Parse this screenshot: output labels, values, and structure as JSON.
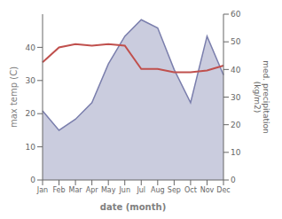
{
  "chart_data": {
    "type": "line",
    "categories": [
      "Jan",
      "Feb",
      "Mar",
      "Apr",
      "May",
      "Jun",
      "Jul",
      "Aug",
      "Sep",
      "Oct",
      "Nov",
      "Dec"
    ],
    "xlabel": "date (month)",
    "ylabel": "max temp (C)",
    "y2label": "med. precipitation\n(kg/m2)",
    "ylim": [
      0,
      50
    ],
    "yticks": [
      0,
      10,
      20,
      30,
      40
    ],
    "y2lim": [
      0,
      60
    ],
    "y2ticks": [
      0,
      10,
      20,
      30,
      40,
      50,
      60
    ],
    "grid": false,
    "series": [
      {
        "type": "area",
        "axis": "y2",
        "color": "#7b7fad",
        "values": [
          25.0,
          18.0,
          22.0,
          28.0,
          42.0,
          52.0,
          58.0,
          55.0,
          40.0,
          28.0,
          52.0,
          38.0
        ]
      },
      {
        "type": "line",
        "color": "#c0504d",
        "values": [
          35.5,
          40.0,
          41.0,
          40.5,
          41.0,
          40.5,
          33.5,
          33.5,
          32.5,
          32.5,
          33.0,
          34.5
        ]
      }
    ]
  }
}
